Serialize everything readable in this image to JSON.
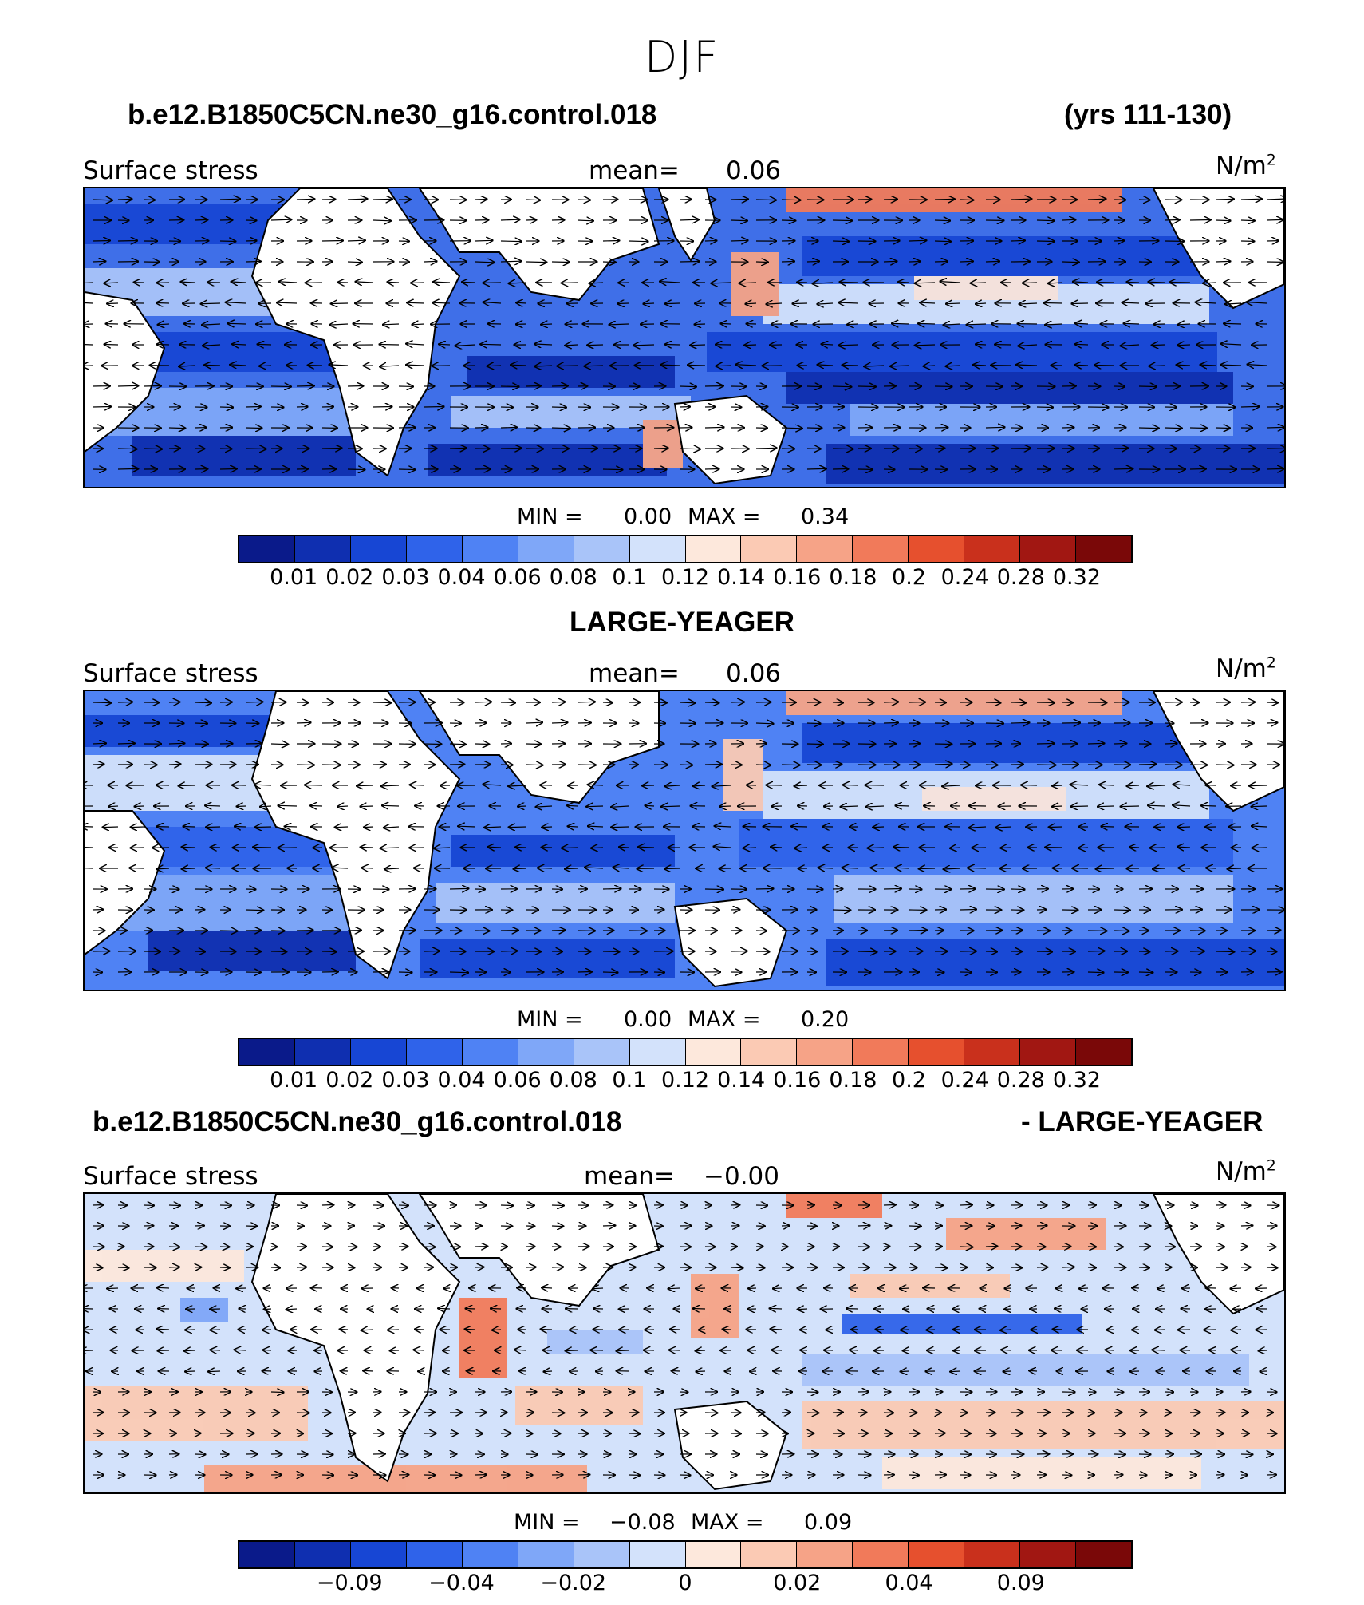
{
  "title": "DJF",
  "header": {
    "case_name": "b.e12.B1850C5CN.ne30_g16.control.018",
    "years": "(yrs 111-130)"
  },
  "panels": [
    {
      "id": "model",
      "variable": "Surface stress",
      "mean_label": "mean=",
      "mean_value": "0.06",
      "units_base": "N/m",
      "units_sup": "2",
      "min_label": "MIN =",
      "min_value": "0.00",
      "max_label": "MAX =",
      "max_value": "0.34",
      "colorbar": [
        "#0a1a8a",
        "#0f2fb0",
        "#1746d4",
        "#2f63ea",
        "#4f82f4",
        "#7fa7f8",
        "#a9c4f9",
        "#d3e2fb",
        "#fde8dc",
        "#fbcab4",
        "#f6a387",
        "#f17a5a",
        "#e6502e",
        "#c9301c",
        "#a11712",
        "#7a0808"
      ],
      "ticks": [
        "0.01",
        "0.02",
        "0.03",
        "0.04",
        "0.06",
        "0.08",
        "0.1",
        "0.12",
        "0.14",
        "0.16",
        "0.18",
        "0.2",
        "0.24",
        "0.28",
        "0.32"
      ]
    },
    {
      "id": "obs",
      "heading": "LARGE-YEAGER",
      "variable": "Surface stress",
      "mean_label": "mean=",
      "mean_value": "0.06",
      "units_base": "N/m",
      "units_sup": "2",
      "min_label": "MIN =",
      "min_value": "0.00",
      "max_label": "MAX =",
      "max_value": "0.20",
      "colorbar": [
        "#0a1a8a",
        "#0f2fb0",
        "#1746d4",
        "#2f63ea",
        "#4f82f4",
        "#7fa7f8",
        "#a9c4f9",
        "#d3e2fb",
        "#fde8dc",
        "#fbcab4",
        "#f6a387",
        "#f17a5a",
        "#e6502e",
        "#c9301c",
        "#a11712",
        "#7a0808"
      ],
      "ticks": [
        "0.01",
        "0.02",
        "0.03",
        "0.04",
        "0.06",
        "0.08",
        "0.1",
        "0.12",
        "0.14",
        "0.16",
        "0.18",
        "0.2",
        "0.24",
        "0.28",
        "0.32"
      ]
    },
    {
      "id": "diff",
      "heading_left": "b.e12.B1850C5CN.ne30_g16.control.018",
      "heading_right": "- LARGE-YEAGER",
      "variable": "Surface stress",
      "mean_label": "mean=",
      "mean_value": "−0.00",
      "units_base": "N/m",
      "units_sup": "2",
      "min_label": "MIN =",
      "min_value": "−0.08",
      "max_label": "MAX =",
      "max_value": "0.09",
      "colorbar": [
        "#0a1a8a",
        "#0f2fb0",
        "#1746d4",
        "#2f63ea",
        "#4f82f4",
        "#7fa7f8",
        "#a9c4f9",
        "#d3e2fb",
        "#fde8dc",
        "#fbcab4",
        "#f6a387",
        "#f17a5a",
        "#e6502e",
        "#c9301c",
        "#a11712",
        "#7a0808"
      ],
      "ticks": [
        "−0.09",
        "−0.04",
        "−0.02",
        "0",
        "0.02",
        "0.04",
        "0.09"
      ]
    }
  ]
}
